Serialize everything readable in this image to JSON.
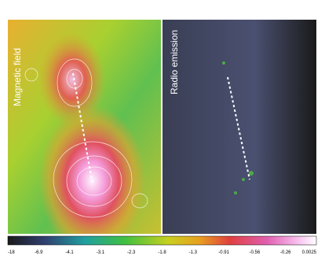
{
  "panels": [
    {
      "label": "Magnetic field"
    },
    {
      "label": "Radio emission"
    }
  ],
  "colorbar": {
    "ticks": [
      "-18",
      "-6.9",
      "-4.1",
      "-3.1",
      "-2.3",
      "-1.8",
      "-1.3",
      "-0.91",
      "-0.56",
      "-0.26",
      "0.0025"
    ]
  }
}
